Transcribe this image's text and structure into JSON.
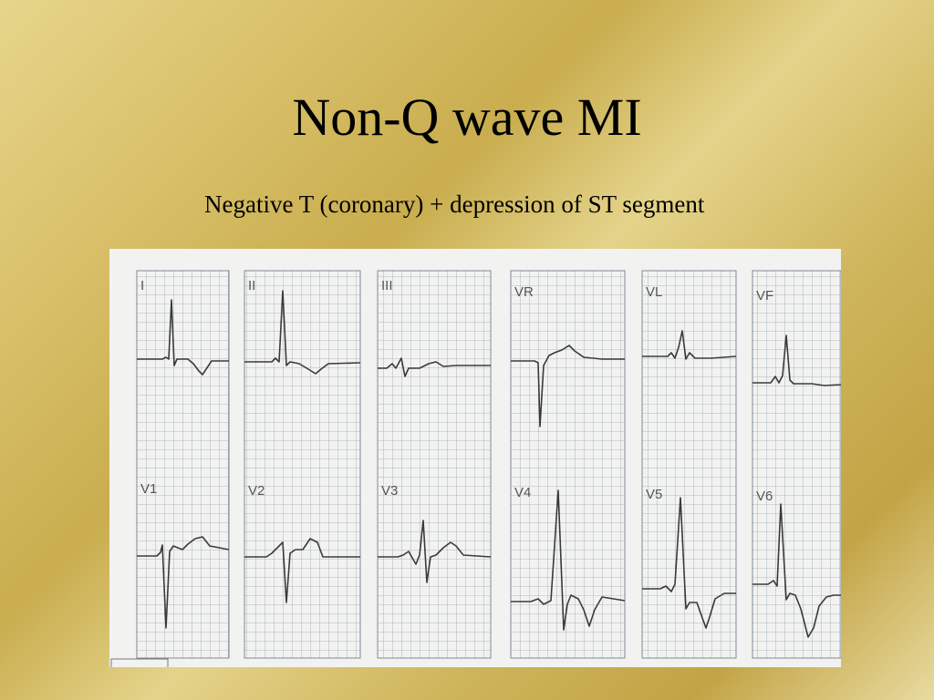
{
  "slide": {
    "title": "Non-Q wave MI",
    "subtitle": "Negative  T (coronary) + depression of ST segment"
  },
  "ecg": {
    "top_row_labels": [
      "I",
      "II",
      "III",
      "VR",
      "VL",
      "VF"
    ],
    "bottom_row_labels": [
      "V1",
      "V2",
      "V3",
      "V4",
      "V5",
      "V6"
    ],
    "colors": {
      "grid": "#9aa6b4",
      "trace": "#3a3a3a",
      "paper": "#f2f3f1"
    }
  }
}
